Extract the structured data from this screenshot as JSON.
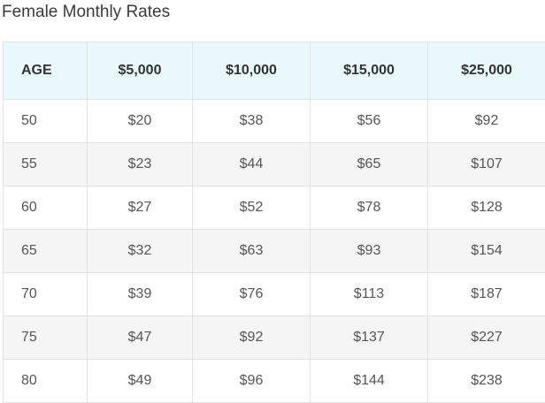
{
  "title": "Female Monthly Rates",
  "table": {
    "headers": [
      "AGE",
      "$5,000",
      "$10,000",
      "$15,000",
      "$25,000"
    ],
    "rows": [
      [
        "50",
        "$20",
        "$38",
        "$56",
        "$92"
      ],
      [
        "55",
        "$23",
        "$44",
        "$65",
        "$107"
      ],
      [
        "60",
        "$27",
        "$52",
        "$78",
        "$128"
      ],
      [
        "65",
        "$32",
        "$63",
        "$93",
        "$154"
      ],
      [
        "70",
        "$39",
        "$76",
        "$113",
        "$187"
      ],
      [
        "75",
        "$47",
        "$92",
        "$137",
        "$227"
      ],
      [
        "80",
        "$49",
        "$96",
        "$144",
        "$238"
      ]
    ]
  }
}
